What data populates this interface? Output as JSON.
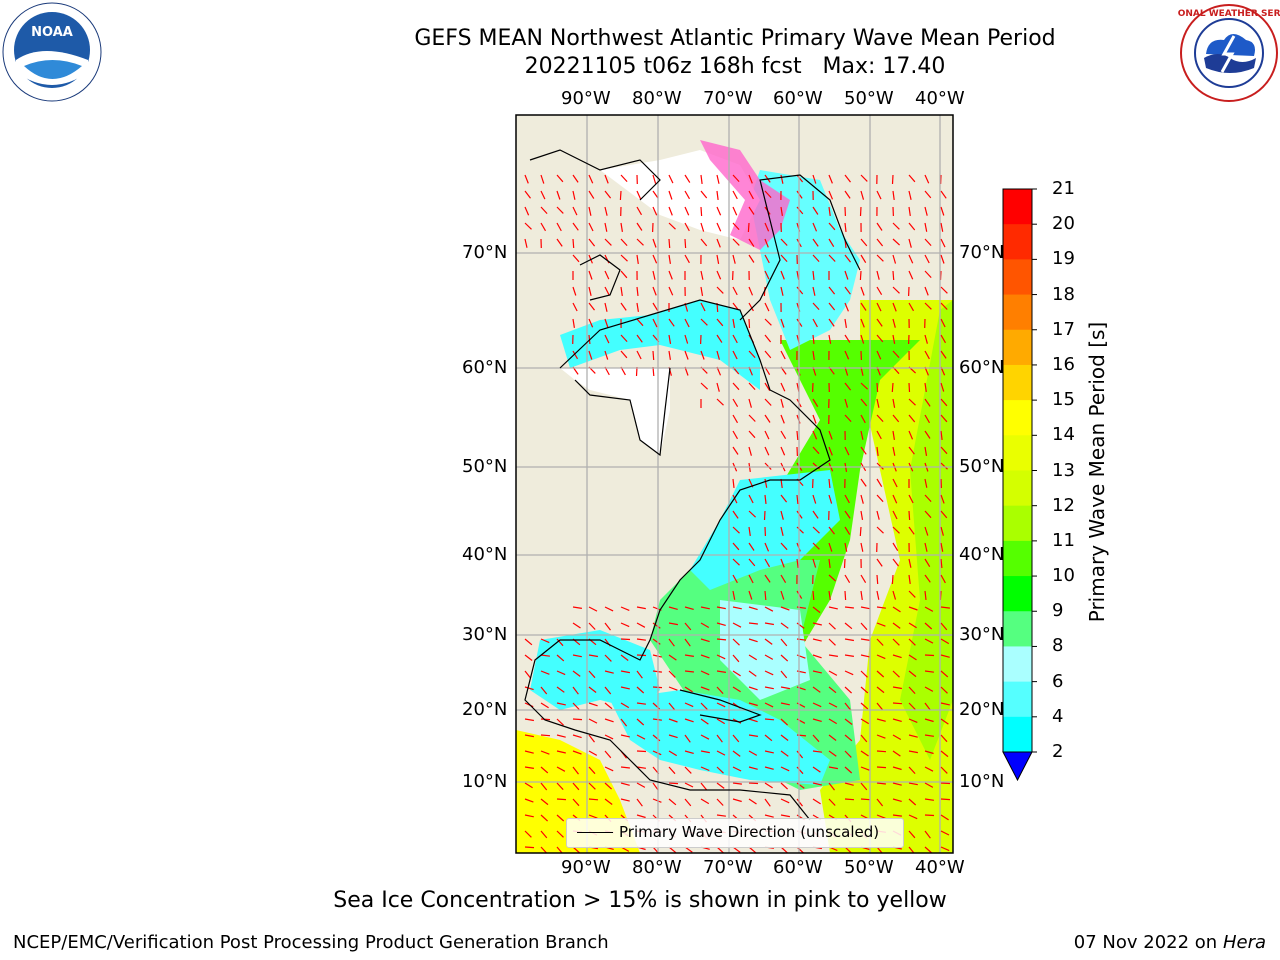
{
  "title": "GEFS MEAN Northwest Atlantic Primary Wave Mean Period",
  "subtitle": "20221105 t06z 168h fcst   Max: 17.40",
  "lon_ticks": [
    "90°W",
    "80°W",
    "70°W",
    "60°W",
    "50°W",
    "40°W"
  ],
  "lat_ticks": [
    "70°N",
    "60°N",
    "50°N",
    "40°N",
    "30°N",
    "20°N",
    "10°N"
  ],
  "colorbar": {
    "label": "Primary Wave Mean Period [s]",
    "ticks": [
      "21",
      "20",
      "19",
      "18",
      "17",
      "16",
      "15",
      "14",
      "13",
      "12",
      "11",
      "10",
      "9",
      "8",
      "6",
      "4",
      "2"
    ],
    "colors": [
      "#ff0000",
      "#ff2a00",
      "#ff5500",
      "#ff7f00",
      "#ffaa00",
      "#ffd400",
      "#ffff00",
      "#eaff00",
      "#d4ff00",
      "#aaff00",
      "#55ff00",
      "#00ff00",
      "#55ff80",
      "#aaffff",
      "#55ffff",
      "#00ffff",
      "#0080ff"
    ],
    "extend_color": "#0000ff"
  },
  "legend_label": "Primary Wave Direction (unscaled)",
  "ice_note": "Sea Ice Concentration > 15% is shown in pink to yellow",
  "footer_left": "NCEP/EMC/Verification Post Processing Product Generation Branch",
  "footer_date": "07 Nov 2022 on",
  "footer_machine": "Hera",
  "logos": {
    "left": "NOAA",
    "right": "NATIONAL WEATHER SERVICE"
  },
  "colors": {
    "land": "#efecdc",
    "arrow": "#ff0000",
    "grid": "#b0b0b0"
  }
}
